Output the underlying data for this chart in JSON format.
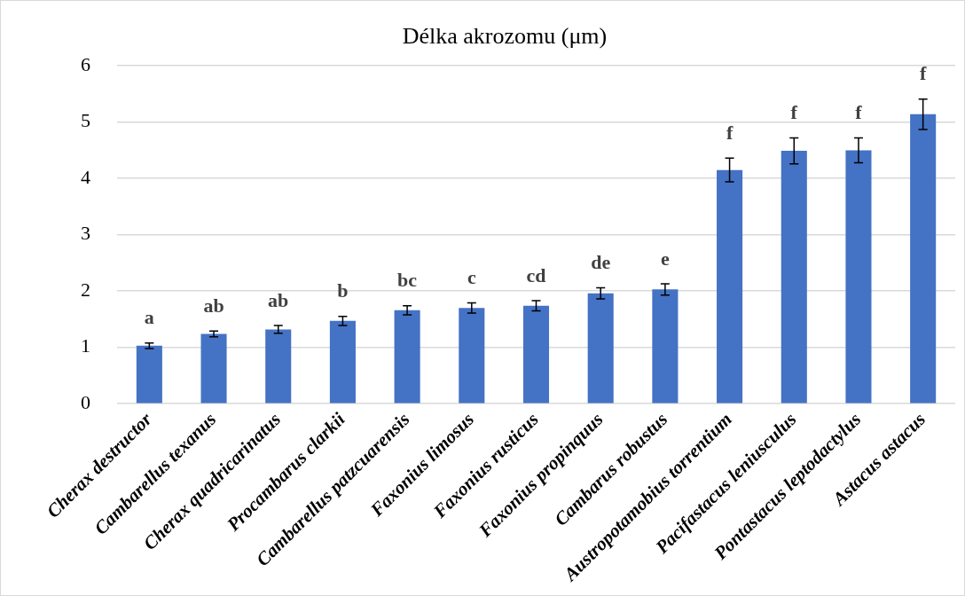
{
  "chart_data": {
    "type": "bar",
    "title": "Délka akrozomu (μm)",
    "categories": [
      "Cherax destructor",
      "Cambarellus texanus",
      "Cherax quadricarinatus",
      "Procambarus clarkii",
      "Cambarellus patzcuarensis",
      "Faxonius limosus",
      "Faxonius rusticus",
      "Faxonius propinquus",
      "Cambarus robustus",
      "Austropotamobius torrentium",
      "Pacifastacus leniusculus",
      "Pontastacus leptodactylus",
      "Astacus astacus"
    ],
    "values": [
      1.03,
      1.24,
      1.32,
      1.47,
      1.66,
      1.7,
      1.74,
      1.96,
      2.03,
      4.15,
      4.49,
      4.5,
      5.14
    ],
    "errors": [
      0.05,
      0.05,
      0.07,
      0.08,
      0.08,
      0.09,
      0.09,
      0.1,
      0.1,
      0.21,
      0.23,
      0.22,
      0.27
    ],
    "color": "#4472c4",
    "ylim": [
      0,
      6
    ],
    "yticks": [
      0,
      1,
      2,
      3,
      4,
      5,
      6
    ],
    "grid": "y",
    "value_labels": [
      "a",
      "ab",
      "ab",
      "b",
      "bc",
      "c",
      "cd",
      "de",
      "e",
      "f",
      "f",
      "f",
      "f"
    ]
  }
}
